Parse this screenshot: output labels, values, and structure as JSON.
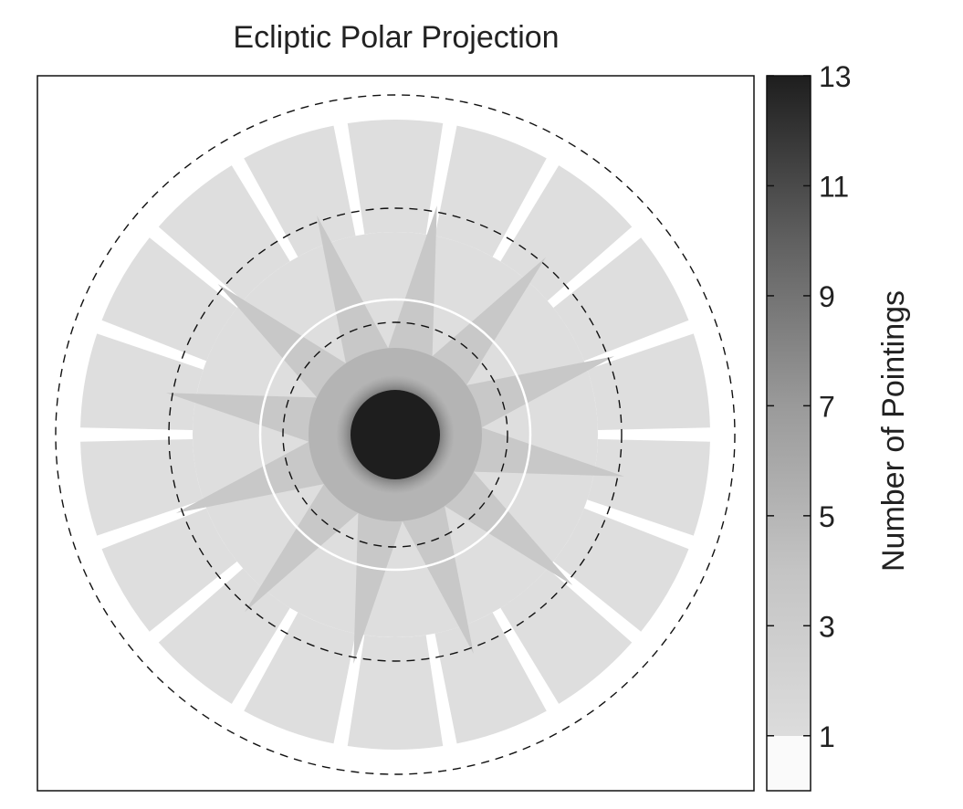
{
  "chart_data": {
    "type": "heatmap",
    "title": "Ecliptic Polar Projection",
    "colorbar": {
      "label": "Number of Pointings",
      "range": [
        0,
        13
      ],
      "ticks": [
        1,
        3,
        5,
        7,
        9,
        11,
        13
      ],
      "tick_labels": [
        "1",
        "3",
        "5",
        "7",
        "9",
        "11",
        "13"
      ],
      "colors": {
        "low": "#fafafa",
        "one": "#dddddd",
        "high": "#1e1e1e"
      }
    },
    "rings": {
      "outer_tiles": 18,
      "star_points": 12,
      "tile_level": 1,
      "star_level": 2,
      "center_level": 13,
      "dashed_circles": 3,
      "white_circle": true
    },
    "colors": {
      "tile": "#dedede",
      "star": "#c8c8c8",
      "star_overlap": "#b4b4b4",
      "core": "#1e1e1e",
      "dash": "#111111",
      "white_ring": "#ffffff"
    }
  }
}
